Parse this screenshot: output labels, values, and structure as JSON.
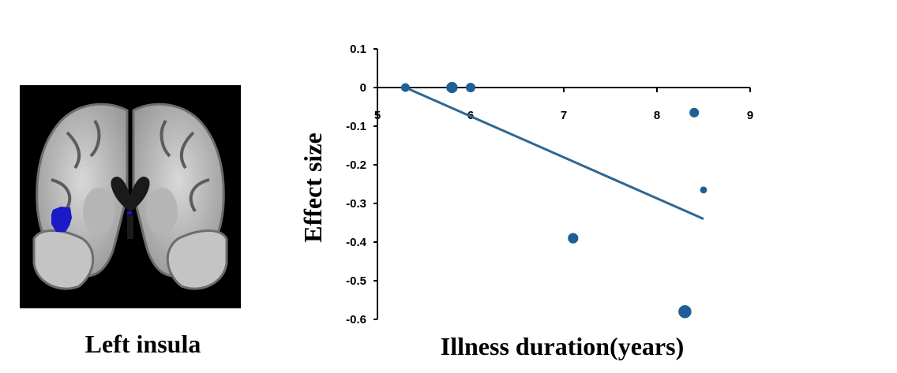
{
  "figure": {
    "image_caption": "Left insula"
  },
  "colors": {
    "marker": "#1f5f96",
    "trend_line": "#2e6792",
    "axis": "#000000",
    "roi": "#1a1ac8"
  },
  "chart_data": {
    "type": "scatter",
    "title": "",
    "xlabel": "Illness duration(years)",
    "ylabel": "Effect size",
    "xlim": [
      5,
      9
    ],
    "ylim": [
      -0.6,
      0.1
    ],
    "x_ticks": [
      5,
      6,
      7,
      8,
      9
    ],
    "y_ticks": [
      0.1,
      0,
      -0.1,
      -0.2,
      -0.3,
      -0.4,
      -0.5,
      -0.6
    ],
    "x_tick_labels": [
      "5",
      "6",
      "7",
      "8",
      "9"
    ],
    "y_tick_labels": [
      "0.1",
      "0",
      "-0.1",
      "-0.2",
      "-0.3",
      "-0.4",
      "-0.5",
      "-0.6"
    ],
    "grid": false,
    "points": [
      {
        "x": 5.3,
        "y": 0.0,
        "weight": 1.0
      },
      {
        "x": 5.8,
        "y": 0.0,
        "weight": 1.3
      },
      {
        "x": 6.0,
        "y": 0.0,
        "weight": 1.1
      },
      {
        "x": 7.1,
        "y": -0.39,
        "weight": 1.2
      },
      {
        "x": 8.3,
        "y": -0.58,
        "weight": 1.5
      },
      {
        "x": 8.4,
        "y": -0.065,
        "weight": 1.1
      },
      {
        "x": 8.5,
        "y": -0.265,
        "weight": 0.8
      }
    ],
    "trend_line": {
      "x": [
        5.3,
        8.5
      ],
      "y": [
        0.0,
        -0.34
      ]
    }
  }
}
